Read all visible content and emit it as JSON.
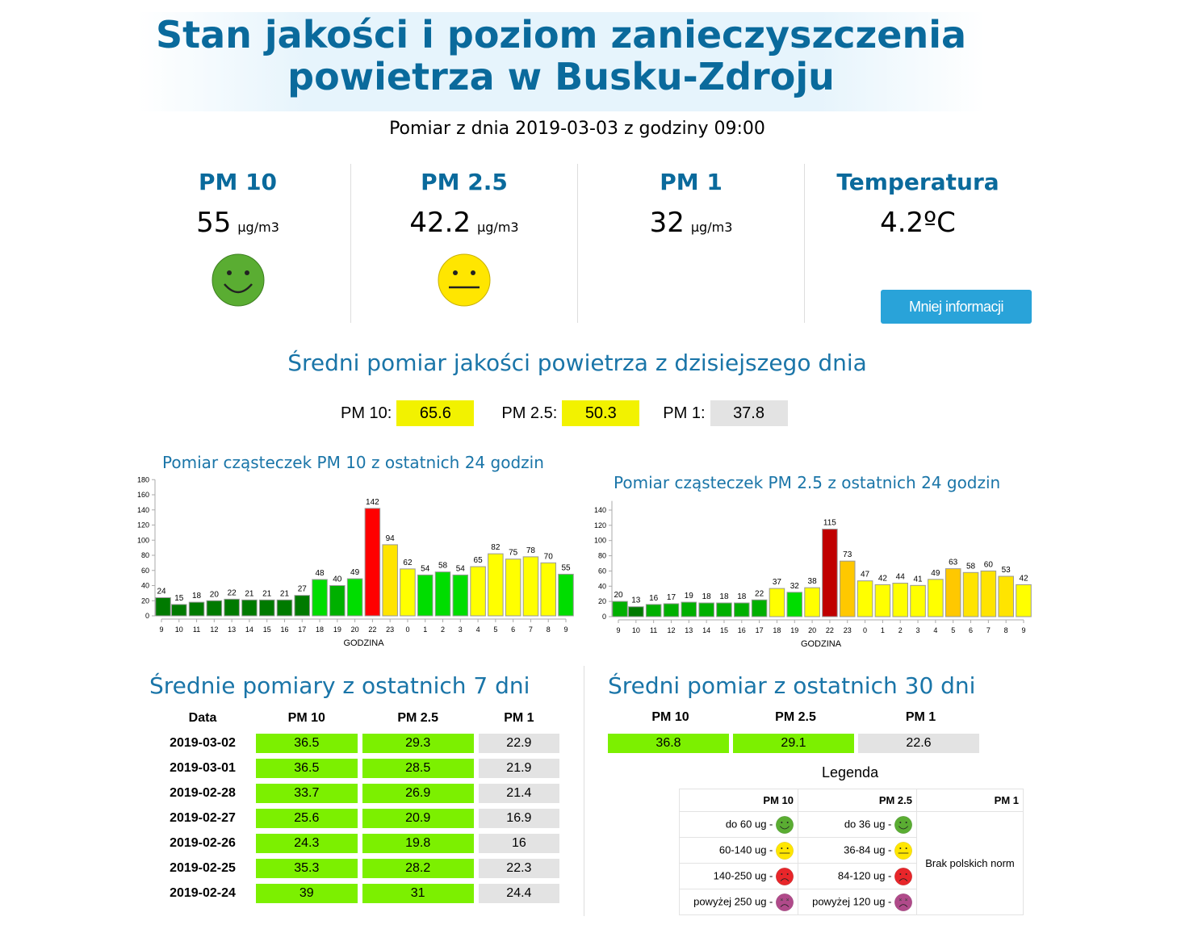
{
  "header": {
    "title_line1": "Stan jakości i poziom zanieczyszczenia",
    "title_line2": "powietrza w Busku-Zdroju",
    "measurement": "Pomiar z dnia 2019-03-03 z godziny 09:00"
  },
  "current": [
    {
      "label": "PM 10",
      "value": "55",
      "unit": "µg/m3",
      "face": "happy"
    },
    {
      "label": "PM 2.5",
      "value": "42.2",
      "unit": "µg/m3",
      "face": "neutral"
    },
    {
      "label": "PM 1",
      "value": "32",
      "unit": "µg/m3"
    },
    {
      "label": "Temperatura",
      "value": "4.2ºC"
    }
  ],
  "less_info_button": "Mniej informacji",
  "daily_avg": {
    "title": "Średni pomiar jakości powietrza z dzisiejszego dnia",
    "items": [
      {
        "label": "PM 10:",
        "value": "65.6",
        "color": "#f2f200"
      },
      {
        "label": "PM 2.5:",
        "value": "50.3",
        "color": "#f2f200"
      },
      {
        "label": "PM 1:",
        "value": "37.8",
        "color": "#e3e3e3"
      }
    ]
  },
  "chart_data": [
    {
      "type": "bar",
      "title": "Pomiar cząsteczek PM 10 z ostatnich 24 godzin",
      "xlabel": "GODZINA",
      "ylabel": "",
      "ylim": [
        0,
        180
      ],
      "yticks": [
        0,
        20,
        40,
        60,
        80,
        100,
        120,
        140,
        160,
        180
      ],
      "categories": [
        "9",
        "10",
        "11",
        "12",
        "13",
        "14",
        "15",
        "16",
        "17",
        "18",
        "19",
        "20",
        "22",
        "23",
        "0",
        "1",
        "2",
        "3",
        "4",
        "5",
        "6",
        "7",
        "8",
        "9"
      ],
      "values": [
        24,
        15,
        18,
        20,
        22,
        21,
        21,
        21,
        27,
        48,
        40,
        49,
        142,
        94,
        62,
        54,
        58,
        54,
        65,
        82,
        75,
        78,
        70,
        55
      ],
      "colors": [
        "#007a00",
        "#007a00",
        "#007a00",
        "#007a00",
        "#007a00",
        "#007a00",
        "#007a00",
        "#007a00",
        "#007a00",
        "#00dd00",
        "#00b000",
        "#00dd00",
        "#ff0000",
        "#ffe400",
        "#ffff00",
        "#00dd00",
        "#00dd00",
        "#00dd00",
        "#ffff00",
        "#ffff00",
        "#ffff00",
        "#ffff00",
        "#ffff00",
        "#00dd00"
      ]
    },
    {
      "type": "bar",
      "title": "Pomiar cząsteczek PM 2.5 z ostatnich 24 godzin",
      "xlabel": "GODZINA",
      "ylabel": "",
      "ylim": [
        0,
        152
      ],
      "yticks": [
        0,
        20,
        40,
        60,
        80,
        100,
        120,
        140
      ],
      "categories": [
        "9",
        "10",
        "11",
        "12",
        "13",
        "14",
        "15",
        "16",
        "17",
        "18",
        "19",
        "20",
        "22",
        "23",
        "0",
        "1",
        "2",
        "3",
        "4",
        "5",
        "6",
        "7",
        "8",
        "9"
      ],
      "values": [
        20,
        13,
        16,
        17,
        19,
        18,
        18,
        18,
        22,
        37,
        32,
        38,
        115,
        73,
        47,
        42,
        44,
        41,
        49,
        63,
        58,
        60,
        53,
        42
      ],
      "colors": [
        "#00b000",
        "#007a00",
        "#00b000",
        "#00b000",
        "#00b000",
        "#00b000",
        "#00b000",
        "#00b000",
        "#00b000",
        "#ffff00",
        "#00dd00",
        "#ffff00",
        "#c00000",
        "#ffc800",
        "#ffff00",
        "#ffff00",
        "#ffff00",
        "#ffff00",
        "#ffff00",
        "#ffc800",
        "#ffe400",
        "#ffe400",
        "#ffe400",
        "#ffff00"
      ]
    }
  ],
  "week": {
    "title": "Średnie pomiary z ostatnich 7 dni",
    "headers": [
      "Data",
      "PM 10",
      "PM 2.5",
      "PM 1"
    ],
    "rows": [
      [
        "2019-03-02",
        "36.5",
        "29.3",
        "22.9"
      ],
      [
        "2019-03-01",
        "36.5",
        "28.5",
        "21.9"
      ],
      [
        "2019-02-28",
        "33.7",
        "26.9",
        "21.4"
      ],
      [
        "2019-02-27",
        "25.6",
        "20.9",
        "16.9"
      ],
      [
        "2019-02-26",
        "24.3",
        "19.8",
        "16"
      ],
      [
        "2019-02-25",
        "35.3",
        "28.2",
        "22.3"
      ],
      [
        "2019-02-24",
        "39",
        "31",
        "24.4"
      ]
    ]
  },
  "month": {
    "title": "Średni pomiar z ostatnich 30 dni",
    "headers": [
      "PM 10",
      "PM 2.5",
      "PM 1"
    ],
    "values": [
      "36.8",
      "29.1",
      "22.6"
    ]
  },
  "legend": {
    "title": "Legenda",
    "headers": [
      "PM 10",
      "PM 2.5",
      "PM 1"
    ],
    "pm10": [
      "do 60 ug -",
      "60-140 ug -",
      "140-250 ug -",
      "powyżej 250 ug -"
    ],
    "pm25": [
      "do 36 ug -",
      "36-84 ug -",
      "84-120 ug -",
      "powyżej 120 ug -"
    ],
    "pm1": "Brak polskich norm"
  },
  "colors": {
    "good": "#7cf000",
    "none": "#e3e3e3",
    "accent": "#0a6a9c",
    "button": "#29a3d9"
  }
}
